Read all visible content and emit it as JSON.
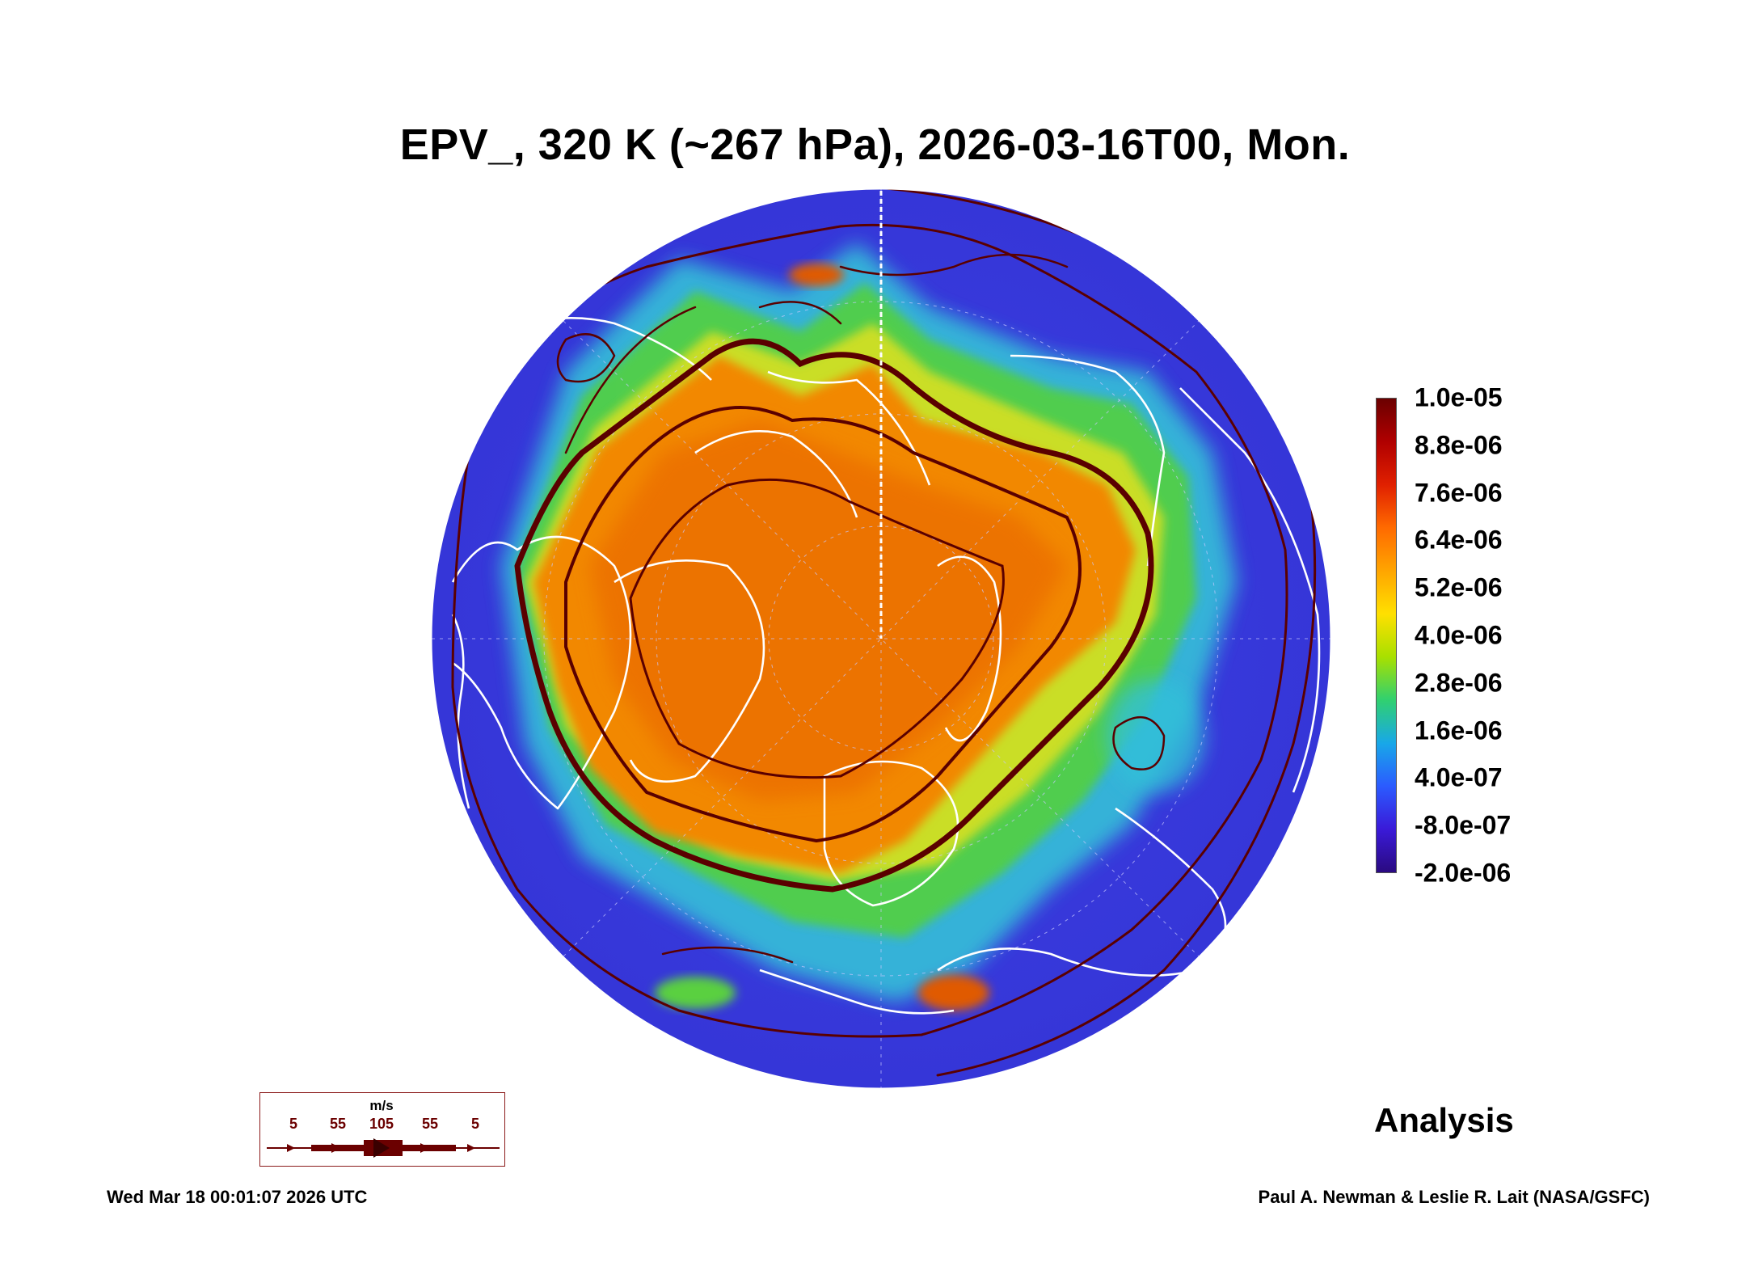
{
  "title": "EPV_, 320 K (~267 hPa), 2026-03-16T00, Mon.",
  "colorbar": {
    "labels": [
      "1.0e-05",
      "8.8e-06",
      "7.6e-06",
      "6.4e-06",
      "5.2e-06",
      "4.0e-06",
      "2.8e-06",
      "1.6e-06",
      "4.0e-07",
      "-8.0e-07",
      "-2.0e-06"
    ],
    "colors": [
      "#6b0000",
      "#b00000",
      "#e02000",
      "#ff6a00",
      "#ffa500",
      "#ffe000",
      "#a8e000",
      "#30d070",
      "#18a8e8",
      "#2b5bff",
      "#3a1ad8",
      "#2a0a80"
    ]
  },
  "map": {
    "projection": "north-polar-stereographic",
    "fill_colors": {
      "low": "#3d3fe0",
      "cyan": "#2ec8e0",
      "green": "#4ad040",
      "yellow": "#d8e020",
      "orange": "#f08a00",
      "high": "#e05a00"
    },
    "coastline_color": "#ffffff",
    "streamline_color": "#5a0000"
  },
  "wind_key": {
    "unit": "m/s",
    "labels": [
      "5",
      "55",
      "105",
      "55",
      "5"
    ]
  },
  "label": "Analysis",
  "timestamp": "Wed Mar 18 00:01:07 2026 UTC",
  "credits": "Paul A. Newman & Leslie R. Lait (NASA/GSFC)"
}
